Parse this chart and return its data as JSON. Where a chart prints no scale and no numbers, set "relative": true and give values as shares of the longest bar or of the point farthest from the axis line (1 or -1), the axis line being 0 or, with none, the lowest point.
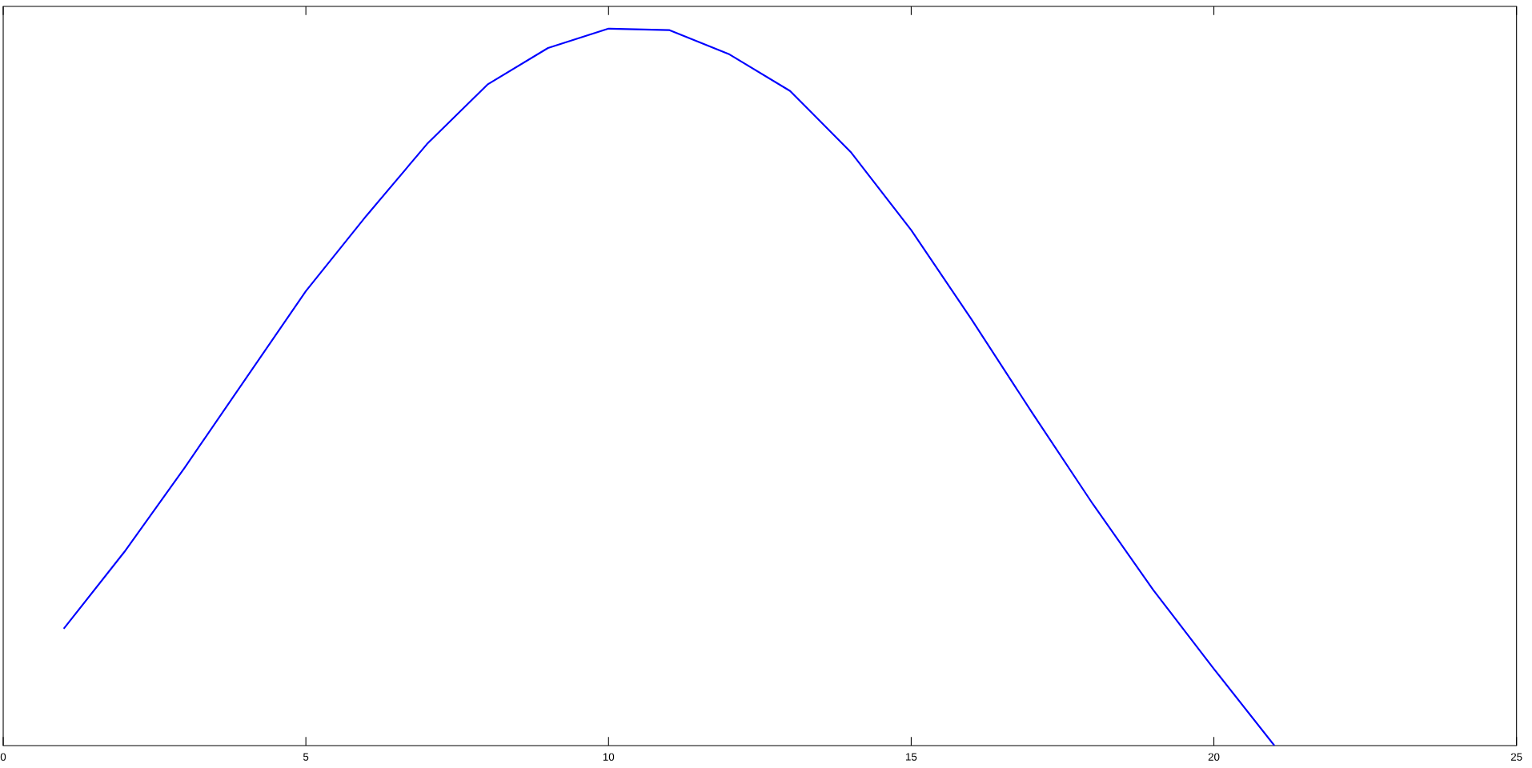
{
  "chart_data": {
    "type": "line",
    "relative": true,
    "color": "#0000ff",
    "x": [
      1,
      2,
      3,
      4,
      5,
      6,
      7,
      8,
      9,
      10,
      11,
      12,
      13,
      14,
      15,
      16,
      17,
      18,
      19,
      20,
      21
    ],
    "values": [
      0.163,
      0.27,
      0.388,
      0.511,
      0.634,
      0.739,
      0.839,
      0.922,
      0.973,
      1.0,
      0.998,
      0.964,
      0.913,
      0.828,
      0.719,
      0.594,
      0.464,
      0.337,
      0.217,
      0.107,
      0.0
    ],
    "xlim": [
      0,
      25
    ],
    "xticks": [
      0,
      5,
      10,
      15,
      20,
      25
    ],
    "tick_labels": "x",
    "marker": "none",
    "line_style": "solid"
  }
}
